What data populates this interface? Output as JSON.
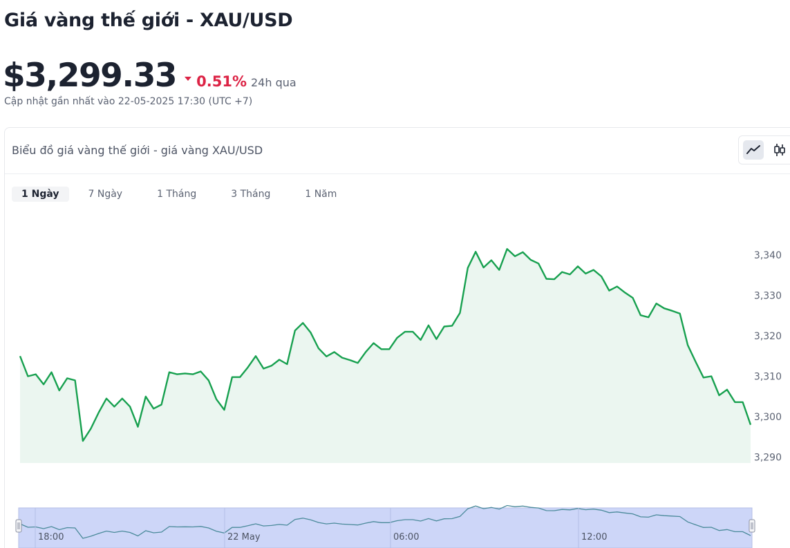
{
  "page": {
    "title": "Giá vàng thế giới - XAU/USD",
    "price": "$3,299.33",
    "change_pct": "0.51%",
    "change_period": "24h qua",
    "change_direction": "down",
    "updated": "Cập nhật gần nhất vào 22-05-2025 17:30 (UTC +7)"
  },
  "card": {
    "title": "Biểu đồ giá vàng thế giới - giá vàng XAU/USD",
    "chart_types": [
      {
        "icon": "line-chart-icon",
        "active": true
      },
      {
        "icon": "candlestick-icon",
        "active": false
      }
    ],
    "ranges": [
      {
        "label": "1 Ngày",
        "active": true
      },
      {
        "label": "7 Ngày",
        "active": false
      },
      {
        "label": "1 Tháng",
        "active": false
      },
      {
        "label": "3 Tháng",
        "active": false
      },
      {
        "label": "1 Năm",
        "active": false
      }
    ]
  },
  "colors": {
    "line": "#17a04f",
    "area": "#ebf6f0",
    "down": "#dc2345",
    "navigator_bg": "#cdd6f8",
    "navigator_line": "#4a8a9a"
  },
  "chart_data": {
    "type": "area",
    "title": "",
    "xlabel": "",
    "ylabel": "",
    "ylim": [
      3288,
      3344
    ],
    "yticks": [
      3290,
      3300,
      3310,
      3320,
      3330,
      3340
    ],
    "ytick_labels": [
      "3,290",
      "3,300",
      "3,310",
      "3,320",
      "3,330",
      "3,340"
    ],
    "navigator_ticks": [
      "18:00",
      "22 May",
      "06:00",
      "12:00"
    ],
    "series": [
      {
        "values": [
          3315,
          3310,
          3310.5,
          3308,
          3311,
          3306.5,
          3309.5,
          3309,
          3294,
          3297,
          3301,
          3304.5,
          3302.5,
          3304.5,
          3302.5,
          3297.5,
          3305,
          3302,
          3303,
          3311,
          3310.5,
          3310.7,
          3310.5,
          3311.2,
          3309,
          3304.3,
          3301.7,
          3309.8,
          3309.8,
          3312.2,
          3315,
          3311.9,
          3312.6,
          3314.1,
          3313,
          3321.3,
          3323.2,
          3320.8,
          3316.9,
          3314.9,
          3316,
          3314.6,
          3314,
          3313.3,
          3316,
          3318.2,
          3316.7,
          3316.7,
          3319.5,
          3321,
          3321,
          3319,
          3322.6,
          3319.2,
          3322.3,
          3322.5,
          3325.7,
          3336.8,
          3340.8,
          3336.9,
          3338.7,
          3336.3,
          3341.5,
          3339.7,
          3340.7,
          3338.8,
          3337.9,
          3334.1,
          3334,
          3335.8,
          3335.2,
          3337.2,
          3335.4,
          3336.3,
          3334.7,
          3331.2,
          3332.2,
          3330.7,
          3329.4,
          3325.1,
          3324.6,
          3328,
          3326.8,
          3326.2,
          3325.5,
          3317.7,
          3313.6,
          3309.7,
          3310,
          3305.3,
          3306.7,
          3303.6,
          3303.6,
          3298
        ]
      }
    ]
  }
}
